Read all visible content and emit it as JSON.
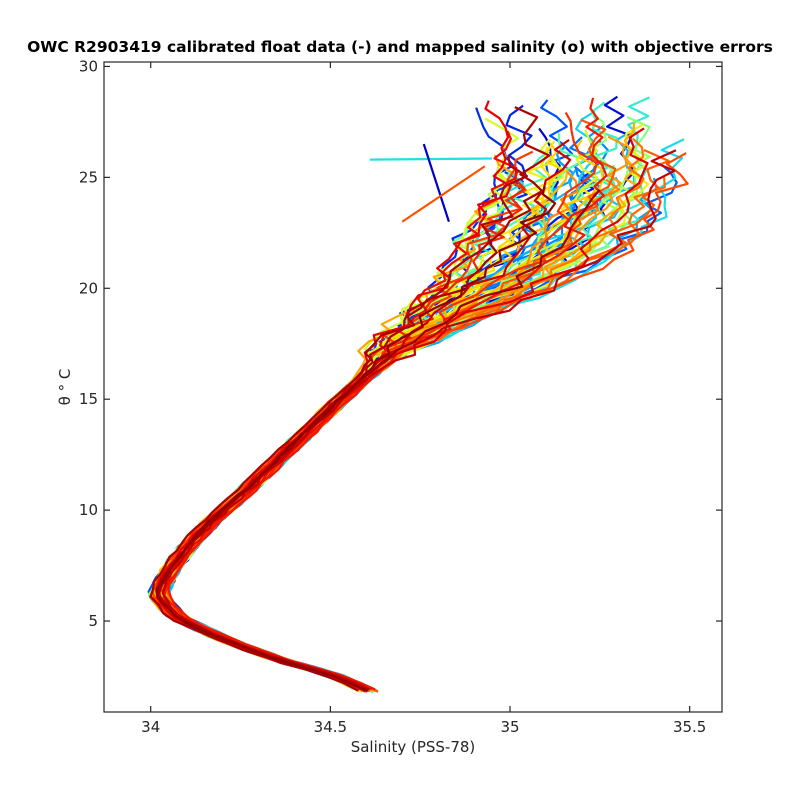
{
  "chart_data": {
    "type": "line",
    "title": "OWC R2903419 calibrated float data (-) and mapped salinity (o) with objective errors",
    "xlabel": "Salinity (PSS-78)",
    "ylabel": "θ ° C",
    "xlim": [
      33.87,
      35.59
    ],
    "ylim": [
      0.9,
      30.2
    ],
    "xticks": [
      34,
      34.5,
      35,
      35.5
    ],
    "xtick_labels": [
      "34",
      "34.5",
      "35",
      "35.5"
    ],
    "yticks": [
      5,
      10,
      15,
      20,
      25,
      30
    ],
    "ytick_labels": [
      "5",
      "10",
      "15",
      "20",
      "25",
      "30"
    ],
    "grid": false,
    "colormap": [
      "#0000c8",
      "#0050ff",
      "#00a0ff",
      "#20e0e8",
      "#60ffa0",
      "#c8ff40",
      "#ffe800",
      "#ffa000",
      "#ff5000",
      "#e80000",
      "#900000"
    ],
    "profile_count": 70,
    "mean_profile": {
      "theta": [
        1.8,
        2.5,
        3.3,
        4.2,
        5.2,
        6.2,
        7.2,
        8.3,
        9.5,
        10.8,
        12.2,
        13.6,
        15.0,
        16.2,
        17.2,
        18.2,
        19.2,
        20.2,
        21.2,
        22.3,
        23.5,
        24.7,
        25.9,
        27.0,
        28.0
      ],
      "salinity": [
        34.61,
        34.52,
        34.35,
        34.2,
        34.07,
        34.02,
        34.05,
        34.1,
        34.17,
        34.26,
        34.35,
        34.44,
        34.53,
        34.61,
        34.67,
        34.76,
        34.86,
        34.96,
        35.04,
        35.1,
        35.15,
        35.19,
        35.2,
        35.19,
        35.16
      ]
    },
    "stray_segments": [
      {
        "from_salinity": 34.61,
        "from_theta": 25.8,
        "to_salinity": 34.95,
        "to_theta": 25.85,
        "color": "#20e0e8"
      },
      {
        "from_salinity": 34.76,
        "from_theta": 26.5,
        "to_salinity": 34.83,
        "to_theta": 23.0,
        "color": "#0000c8"
      },
      {
        "from_salinity": 34.93,
        "from_theta": 25.5,
        "to_salinity": 34.7,
        "to_theta": 23.0,
        "color": "#ff5000"
      }
    ]
  }
}
